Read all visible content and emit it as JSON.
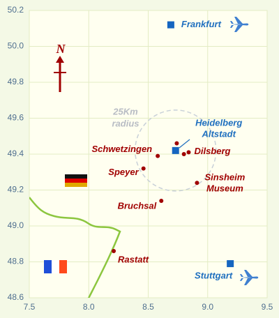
{
  "chart_data": {
    "type": "scatter",
    "xlim": [
      7.5,
      9.5
    ],
    "ylim": [
      48.6,
      50.2
    ],
    "xticks": [
      7.5,
      {
        "value": 8,
        "label": "8.0"
      },
      8.5,
      {
        "value": 9,
        "label": "9.0"
      },
      9.5
    ],
    "yticks": [
      48.6,
      48.8,
      {
        "value": 49,
        "label": "49.0"
      },
      49.2,
      49.4,
      49.6,
      49.8,
      {
        "value": 50,
        "label": "50.0"
      },
      50.2
    ],
    "grid": true,
    "north_label": "N",
    "annotation": [
      "25Km",
      "radius"
    ],
    "points": [
      {
        "label": [
          "Frankfurt"
        ],
        "x": 8.69,
        "y": 50.12,
        "marker": "square",
        "color": "#1565c0"
      },
      {
        "label": [
          "Heidelberg",
          "Altstadt"
        ],
        "x": 8.73,
        "y": 49.42,
        "marker": "square",
        "color": "#1565c0"
      },
      {
        "label": [
          "Schwetzingen"
        ],
        "x": 8.58,
        "y": 49.39,
        "marker": "dot",
        "color": "#a00000"
      },
      {
        "label": [
          "Speyer"
        ],
        "x": 8.46,
        "y": 49.32,
        "marker": "dot",
        "color": "#a00000"
      },
      {
        "label": [
          "Dilsberg"
        ],
        "x": 8.84,
        "y": 49.41,
        "marker": "dot",
        "color": "#a00000"
      },
      {
        "label": [
          "Sinsheim",
          "Museum"
        ],
        "x": 8.91,
        "y": 49.24,
        "marker": "dot",
        "color": "#a00000"
      },
      {
        "label": [
          "Bruchsal"
        ],
        "x": 8.61,
        "y": 49.14,
        "marker": "dot",
        "color": "#a00000"
      },
      {
        "label": [
          "Rastatt"
        ],
        "x": 8.21,
        "y": 48.86,
        "marker": "dot",
        "color": "#a00000"
      },
      {
        "label": [
          "Stuttgart"
        ],
        "x": 9.19,
        "y": 48.79,
        "marker": "square",
        "color": "#1565c0"
      },
      {
        "label": null,
        "x": 8.74,
        "y": 49.46,
        "marker": "dot",
        "color": "#a00000"
      },
      {
        "label": null,
        "x": 8.8,
        "y": 49.4,
        "marker": "dot",
        "color": "#a00000"
      }
    ]
  }
}
